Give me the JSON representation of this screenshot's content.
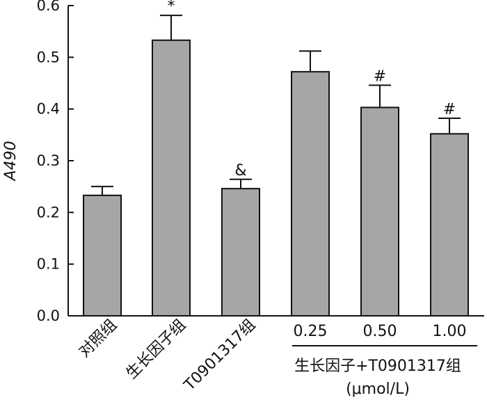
{
  "chart_data": {
    "type": "bar",
    "title": "",
    "ylabel": "A490",
    "ylim": [
      0,
      0.6
    ],
    "yticks": [
      "0.0",
      "0.1",
      "0.2",
      "0.3",
      "0.4",
      "0.5",
      "0.6"
    ],
    "grid": false,
    "legend": "none",
    "categories": [
      "对照组",
      "生长因子组",
      "T0901317组",
      "0.25",
      "0.50",
      "1.00"
    ],
    "values": [
      0.233,
      0.533,
      0.246,
      0.472,
      0.403,
      0.352
    ],
    "errors": [
      0.017,
      0.048,
      0.018,
      0.04,
      0.043,
      0.03
    ],
    "annotations": [
      "",
      "*",
      "&",
      "",
      "#",
      "#"
    ],
    "group_label": "生长因子+T0901317组",
    "unit_label": "(μmol/L)",
    "colors": {
      "bar": "#a6a6a6",
      "stroke": "#111111"
    }
  }
}
